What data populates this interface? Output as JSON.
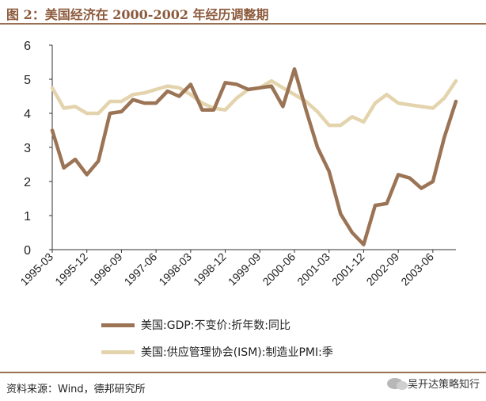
{
  "figure": {
    "title": "图 2：美国经济在 2000-2002 年经历调整期",
    "source": "资料来源：Wind，德邦研究所",
    "watermark": "吴开达策略知行",
    "watermark_icon": "wechat-icon"
  },
  "chart_data": {
    "type": "line",
    "title": "图 2：美国经济在 2000-2002 年经历调整期",
    "xlabel": "",
    "ylabel": "",
    "ylim": [
      0,
      6
    ],
    "yticks": [
      "0",
      "1",
      "2",
      "3",
      "4",
      "5",
      "6"
    ],
    "grid": false,
    "x": [
      "1995-03",
      "1995-06",
      "1995-09",
      "1995-12",
      "1996-03",
      "1996-06",
      "1996-09",
      "1996-12",
      "1997-03",
      "1997-06",
      "1997-09",
      "1997-12",
      "1998-03",
      "1998-06",
      "1998-09",
      "1998-12",
      "1999-03",
      "1999-06",
      "1999-09",
      "1999-12",
      "2000-03",
      "2000-06",
      "2000-09",
      "2000-12",
      "2001-03",
      "2001-06",
      "2001-09",
      "2001-12",
      "2002-03",
      "2002-06",
      "2002-09",
      "2002-12",
      "2003-03",
      "2003-06",
      "2003-09",
      "2003-12"
    ],
    "xtick_labels": [
      "1995-03",
      "1995-12",
      "1996-09",
      "1997-06",
      "1998-03",
      "1998-12",
      "1999-09",
      "2000-06",
      "2001-03",
      "2001-12",
      "2002-09",
      "2003-06"
    ],
    "series": [
      {
        "name": "美国:GDP:不变价:折年数:同比",
        "color": "#9b7355",
        "values": [
          3.5,
          2.4,
          2.65,
          2.2,
          2.6,
          4.0,
          4.05,
          4.4,
          4.3,
          4.3,
          4.65,
          4.5,
          4.85,
          4.1,
          4.1,
          4.9,
          4.85,
          4.7,
          4.75,
          4.8,
          4.2,
          5.3,
          4.1,
          3.0,
          2.3,
          1.05,
          0.5,
          0.15,
          1.3,
          1.35,
          2.2,
          2.1,
          1.8,
          2.0,
          3.3,
          4.35
        ]
      },
      {
        "name": "美国:供应管理协会(ISM):制造业PMI:季",
        "color": "#e4d4ad",
        "values": [
          4.75,
          4.15,
          4.2,
          4.0,
          4.0,
          4.35,
          4.35,
          4.55,
          4.6,
          4.7,
          4.8,
          4.75,
          4.55,
          4.3,
          4.15,
          4.1,
          4.45,
          4.7,
          4.75,
          4.95,
          4.75,
          4.55,
          4.35,
          4.05,
          3.65,
          3.65,
          3.9,
          3.75,
          4.3,
          4.55,
          4.3,
          4.25,
          4.2,
          4.15,
          4.45,
          4.95
        ]
      }
    ]
  }
}
